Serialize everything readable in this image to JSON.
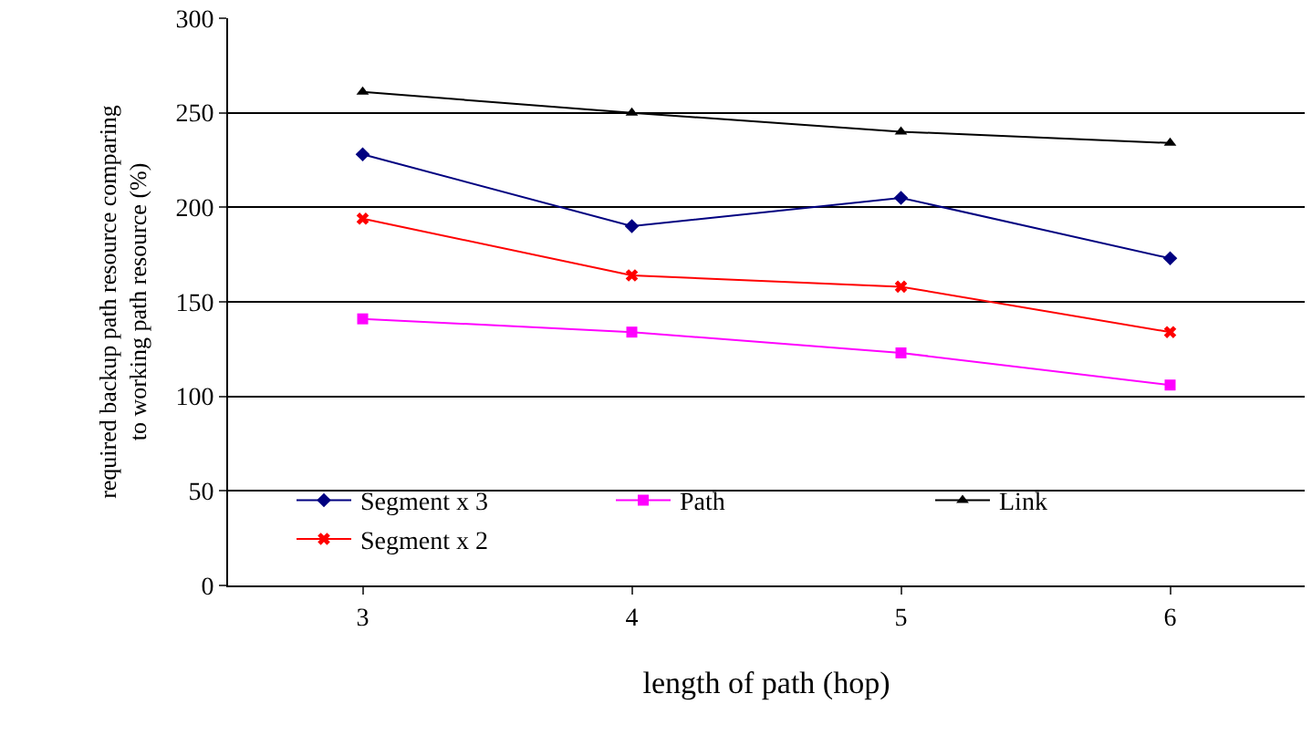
{
  "chart_data": {
    "type": "line",
    "xlabel": "length of path (hop)",
    "ylabel": "required backup path resource comparing to working path resource (%)",
    "categories": [
      "3",
      "4",
      "5",
      "6"
    ],
    "ylim": [
      0,
      300
    ],
    "yticks": [
      0,
      50,
      100,
      150,
      200,
      250,
      300
    ],
    "grid": "y",
    "legend": "bottom",
    "series": [
      {
        "name": "Segment x 3",
        "color": "#000080",
        "marker": "diamond",
        "values": [
          228,
          190,
          205,
          173
        ]
      },
      {
        "name": "Path",
        "color": "#ff00ff",
        "marker": "square",
        "values": [
          141,
          134,
          123,
          106
        ]
      },
      {
        "name": "Link",
        "color": "#000000",
        "marker": "triangle",
        "values": [
          261,
          250,
          240,
          234
        ]
      },
      {
        "name": "Segment x 2",
        "color": "#ff0000",
        "marker": "cross",
        "values": [
          194,
          164,
          158,
          134
        ]
      }
    ]
  }
}
